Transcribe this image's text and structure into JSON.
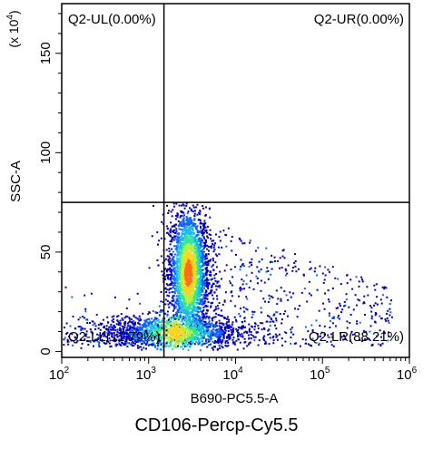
{
  "chart_data": {
    "type": "scatter",
    "title": "CD106-Percp-Cy5.5",
    "xlabel": "B690-PC5.5-A",
    "ylabel": "SSC-A",
    "y_multiplier_label": "(x 10^4)",
    "x_scale": "log",
    "xlim": [
      100,
      1000000
    ],
    "x_ticks": [
      {
        "value": 100,
        "base": "10",
        "exp": "2"
      },
      {
        "value": 1000,
        "base": "10",
        "exp": "3"
      },
      {
        "value": 10000,
        "base": "10",
        "exp": "4"
      },
      {
        "value": 100000,
        "base": "10",
        "exp": "5"
      },
      {
        "value": 1000000,
        "base": "10",
        "exp": "6"
      }
    ],
    "ylim": [
      -3,
      175
    ],
    "y_ticks": [
      0,
      50,
      100,
      150
    ],
    "gates": {
      "vertical_x": 1500,
      "horizontal_y": 75
    },
    "quadrants": [
      {
        "name": "Q2-UL",
        "text": "Q2-UL(0.00%)",
        "percent": 0.0,
        "position": "upper-left"
      },
      {
        "name": "Q2-UR",
        "text": "Q2-UR(0.00%)",
        "percent": 0.0,
        "position": "upper-right"
      },
      {
        "name": "Q2-LL",
        "text": "Q2-LL(11.79%)",
        "percent": 11.79,
        "position": "lower-left"
      },
      {
        "name": "Q2-LR",
        "text": "Q2-LR(88.21%)",
        "percent": 88.21,
        "position": "lower-right"
      }
    ],
    "density_colors": [
      "#0000c8",
      "#0a64ff",
      "#19b9e6",
      "#2ee6a0",
      "#b4f03c",
      "#ffd21e",
      "#ff6e14"
    ],
    "populations": [
      {
        "label": "main",
        "x_center_log": 3.45,
        "x_spread_log": 0.12,
        "y_center": 40,
        "y_spread": 16
      },
      {
        "label": "bottom-band",
        "x_center_log": 3.3,
        "x_spread_log": 0.45,
        "y_center": 10,
        "y_spread": 4
      }
    ],
    "grid": false
  }
}
